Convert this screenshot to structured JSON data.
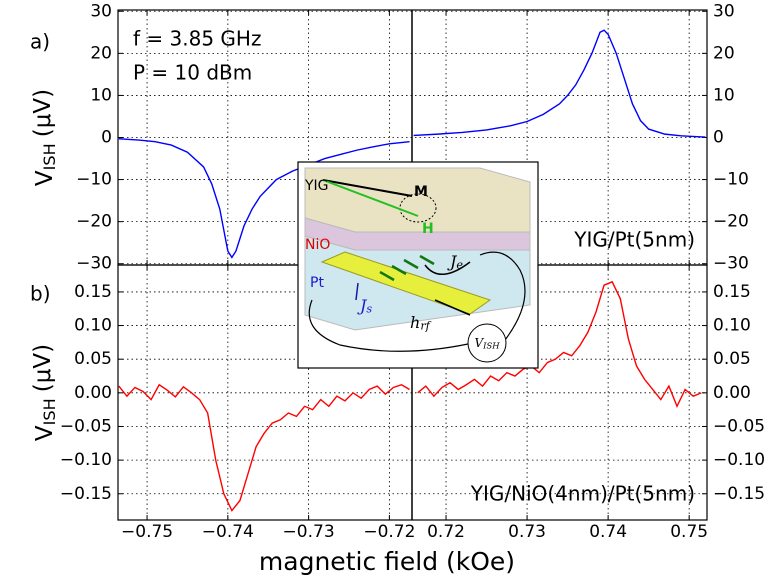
{
  "chart_data": [
    {
      "type": "line",
      "label": "a)",
      "annotations": [
        "f = 3.85 GHz",
        "P = 10 dBm"
      ],
      "sample": "YIG/Pt(5nm)",
      "ylabel": {
        "main": "V",
        "sub": "ISH",
        "unit": "(μV)"
      },
      "ylim": [
        -30.3,
        30.3
      ],
      "yticks": [
        {
          "value": -30,
          "label": "−30"
        },
        {
          "value": -20,
          "label": "−20"
        },
        {
          "value": -10,
          "label": "−10"
        },
        0,
        10,
        20,
        30
      ],
      "grid": true,
      "series": [
        {
          "color": "#0000ff",
          "x": [
            -0.7535,
            -0.751,
            -0.749,
            -0.747,
            -0.745,
            -0.743,
            -0.742,
            -0.741,
            -0.7405,
            -0.74,
            -0.7395,
            -0.739,
            -0.7385,
            -0.738,
            -0.737,
            -0.736,
            -0.734,
            -0.732,
            -0.73,
            -0.728,
            -0.726,
            -0.724,
            -0.722,
            -0.72,
            -0.7175
          ],
          "values": [
            -0.3,
            -0.6,
            -1.0,
            -1.8,
            -3.5,
            -7,
            -11,
            -17,
            -22,
            -27,
            -28.5,
            -27,
            -24,
            -21,
            -17,
            -14,
            -10,
            -8,
            -6.5,
            -5,
            -4,
            -3,
            -2.2,
            -1.5,
            -1.0
          ]
        },
        {
          "color": "#0000ff",
          "x": [
            0.716,
            0.719,
            0.722,
            0.725,
            0.728,
            0.73,
            0.732,
            0.734,
            0.735,
            0.736,
            0.737,
            0.738,
            0.7385,
            0.739,
            0.7395,
            0.74,
            0.741,
            0.742,
            0.743,
            0.744,
            0.745,
            0.747,
            0.749,
            0.751,
            0.752
          ],
          "values": [
            0.5,
            0.8,
            1.2,
            1.8,
            2.8,
            3.8,
            5.5,
            8,
            10,
            12.5,
            16,
            20,
            22.5,
            25,
            25.5,
            24.5,
            20,
            14,
            8,
            4,
            2,
            0.8,
            0.4,
            0.2,
            0.1
          ]
        }
      ]
    },
    {
      "type": "line",
      "label": "b)",
      "sample": "YIG/NiO(4nm)/Pt(5nm)",
      "ylabel": {
        "main": "V",
        "sub": "ISH",
        "unit": "(μV)"
      },
      "ylim": [
        -0.189,
        0.19
      ],
      "yticks": [
        {
          "value": -0.15,
          "label": "−0.15"
        },
        {
          "value": -0.1,
          "label": "−0.10"
        },
        {
          "value": -0.05,
          "label": "−0.05"
        },
        {
          "value": 0,
          "label": "0.00"
        },
        {
          "value": 0.05,
          "label": "0.05"
        },
        {
          "value": 0.1,
          "label": "0.10"
        },
        {
          "value": 0.15,
          "label": "0.15"
        }
      ],
      "grid": true,
      "series": [
        {
          "color": "#ff0000",
          "x": [
            -0.7535,
            -0.7525,
            -0.7515,
            -0.7505,
            -0.7495,
            -0.7485,
            -0.7475,
            -0.7465,
            -0.7455,
            -0.7445,
            -0.7435,
            -0.7425,
            -0.7415,
            -0.7405,
            -0.7395,
            -0.7385,
            -0.7375,
            -0.7365,
            -0.7355,
            -0.7345,
            -0.7335,
            -0.7325,
            -0.7315,
            -0.7305,
            -0.7295,
            -0.7285,
            -0.7275,
            -0.7265,
            -0.7255,
            -0.7245,
            -0.7235,
            -0.7225,
            -0.7215,
            -0.7205,
            -0.7195,
            -0.7185,
            -0.7175
          ],
          "values": [
            0.01,
            -0.005,
            0.008,
            0.002,
            -0.01,
            0.012,
            0.004,
            -0.006,
            0.009,
            0.0,
            -0.01,
            -0.03,
            -0.1,
            -0.15,
            -0.175,
            -0.16,
            -0.12,
            -0.08,
            -0.06,
            -0.045,
            -0.04,
            -0.03,
            -0.035,
            -0.02,
            -0.025,
            -0.01,
            -0.02,
            -0.005,
            -0.012,
            0.0,
            -0.008,
            0.005,
            0.01,
            -0.002,
            0.008,
            0.012,
            0.005
          ]
        },
        {
          "color": "#ff0000",
          "x": [
            0.7165,
            0.7175,
            0.7185,
            0.7195,
            0.7205,
            0.7215,
            0.7225,
            0.7235,
            0.7245,
            0.7255,
            0.7265,
            0.7275,
            0.7285,
            0.7295,
            0.7305,
            0.7315,
            0.7325,
            0.7335,
            0.7345,
            0.7355,
            0.7365,
            0.7375,
            0.7385,
            0.7395,
            0.7405,
            0.7415,
            0.7425,
            0.7435,
            0.7445,
            0.7455,
            0.7465,
            0.7475,
            0.7485,
            0.7495,
            0.7505,
            0.7515
          ],
          "values": [
            0.0,
            0.01,
            -0.005,
            0.008,
            0.015,
            0.005,
            0.012,
            0.02,
            0.01,
            0.025,
            0.018,
            0.03,
            0.025,
            0.035,
            0.04,
            0.03,
            0.045,
            0.05,
            0.06,
            0.055,
            0.07,
            0.09,
            0.12,
            0.16,
            0.165,
            0.14,
            0.08,
            0.04,
            0.02,
            0.005,
            -0.01,
            0.01,
            -0.02,
            0.005,
            -0.005,
            0.0
          ]
        }
      ]
    }
  ],
  "x_axis": {
    "label": "magnetic field (kOe)",
    "segments": [
      {
        "xlim": [
          -0.7536,
          -0.7172
        ],
        "xticks": [
          {
            "value": -0.75,
            "label": "−0.75"
          },
          {
            "value": -0.74,
            "label": "−0.74"
          },
          {
            "value": -0.73,
            "label": "−0.73"
          },
          {
            "value": -0.72,
            "label": "−0.72"
          }
        ]
      },
      {
        "xlim": [
          0.7158,
          0.7522
        ],
        "xticks": [
          0.72,
          0.73,
          0.74,
          0.75
        ]
      }
    ]
  },
  "inset": {
    "yig": "YIG",
    "m": "M",
    "h": "H",
    "nio": "NiO",
    "pt": "Pt",
    "je": {
      "main": "J",
      "sub": "e"
    },
    "js": {
      "main": "J",
      "sub": "s"
    },
    "hrf": {
      "main": "h",
      "sub": "rf"
    },
    "vish": {
      "main": "V",
      "sub": "ISH"
    }
  }
}
